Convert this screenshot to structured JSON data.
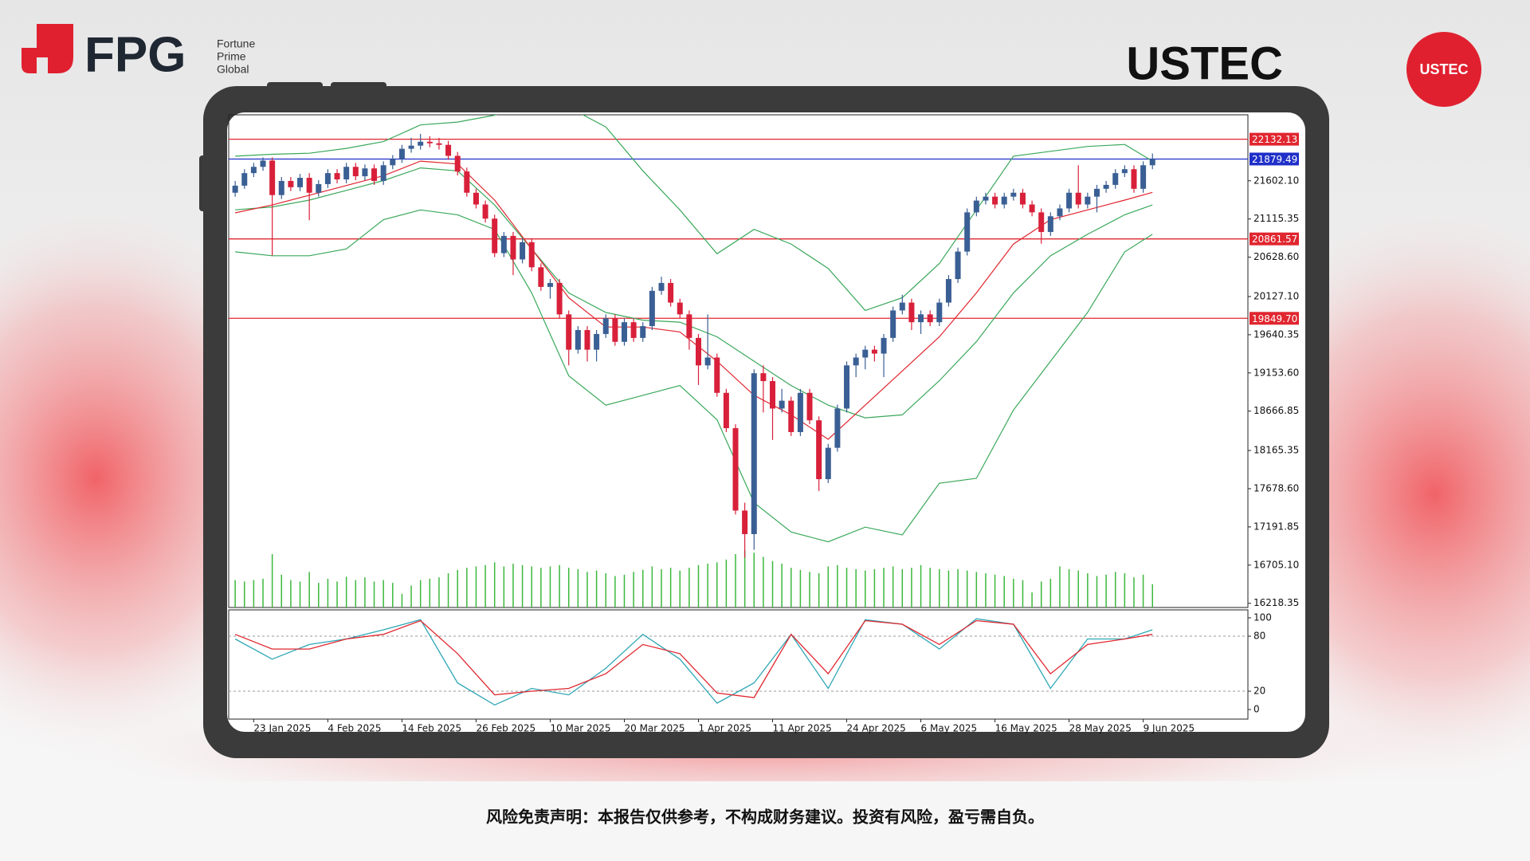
{
  "header": {
    "logo": {
      "name": "FPG",
      "tagline": [
        "Fortune",
        "Prime",
        "Global"
      ]
    },
    "title": "USTEC",
    "badge": "USTEC"
  },
  "chart_data": [
    {
      "type": "candlestick",
      "up_color": "#3a5f94",
      "down_color": "#d8203a",
      "xlim": [
        -0.7,
        109.3
      ],
      "ylim": [
        16165,
        22443
      ],
      "yticks": [
        16218.35,
        {
          "value": 16705.1,
          "label": "16705.10"
        },
        17191.85,
        {
          "value": 17678.6,
          "label": "17678.60"
        },
        18165.35,
        18666.85,
        {
          "value": 19153.6,
          "label": "19153.60"
        },
        19640.35,
        {
          "value": 20127.1,
          "label": "20127.10"
        },
        {
          "value": 20628.6,
          "label": "20628.60"
        },
        21115.35,
        {
          "value": 21602.1,
          "label": "21602.10"
        }
      ],
      "levels": [
        {
          "value": 22132.13,
          "label": "22132.13",
          "color": "#e0262f"
        },
        {
          "value": 21879.49,
          "label": "21879.49",
          "color": "#1f2fc8"
        },
        {
          "value": 20861.57,
          "label": "20861.57",
          "color": "#e0262f"
        },
        {
          "value": 19849.7,
          "label": "19849.70",
          "color": "#e0262f"
        }
      ],
      "ohlc": [
        [
          21450,
          21600,
          21400,
          21540
        ],
        [
          21540,
          21750,
          21500,
          21700
        ],
        [
          21700,
          21830,
          21650,
          21780
        ],
        [
          21780,
          21900,
          21730,
          21860
        ],
        [
          21860,
          21900,
          20650,
          21420
        ],
        [
          21420,
          21650,
          21370,
          21600
        ],
        [
          21600,
          21650,
          21470,
          21520
        ],
        [
          21520,
          21690,
          21470,
          21640
        ],
        [
          21640,
          21700,
          21100,
          21450
        ],
        [
          21450,
          21610,
          21400,
          21560
        ],
        [
          21560,
          21750,
          21510,
          21700
        ],
        [
          21700,
          21750,
          21570,
          21620
        ],
        [
          21620,
          21830,
          21570,
          21780
        ],
        [
          21780,
          21830,
          21610,
          21660
        ],
        [
          21660,
          21810,
          21610,
          21760
        ],
        [
          21760,
          21810,
          21550,
          21600
        ],
        [
          21600,
          21850,
          21550,
          21800
        ],
        [
          21800,
          21930,
          21750,
          21880
        ],
        [
          21880,
          22060,
          21830,
          22010
        ],
        [
          22010,
          22150,
          21960,
          22050
        ],
        [
          22050,
          22200,
          22000,
          22100
        ],
        [
          22100,
          22170,
          22030,
          22080
        ],
        [
          22080,
          22150,
          22000,
          22060
        ],
        [
          22060,
          22110,
          21870,
          21920
        ],
        [
          21920,
          21970,
          21670,
          21720
        ],
        [
          21720,
          21770,
          21400,
          21450
        ],
        [
          21450,
          21500,
          21250,
          21300
        ],
        [
          21300,
          21350,
          21070,
          21120
        ],
        [
          21120,
          21170,
          20630,
          20680
        ],
        [
          20680,
          20950,
          20630,
          20900
        ],
        [
          20900,
          20950,
          20400,
          20600
        ],
        [
          20600,
          20870,
          20550,
          20820
        ],
        [
          20820,
          20870,
          20450,
          20500
        ],
        [
          20500,
          20550,
          20200,
          20250
        ],
        [
          20250,
          20350,
          20100,
          20300
        ],
        [
          20300,
          20350,
          19850,
          19900
        ],
        [
          19900,
          19950,
          19250,
          19450
        ],
        [
          19450,
          19750,
          19400,
          19700
        ],
        [
          19700,
          19750,
          19300,
          19450
        ],
        [
          19450,
          19700,
          19300,
          19650
        ],
        [
          19650,
          19900,
          19600,
          19850
        ],
        [
          19850,
          19900,
          19500,
          19550
        ],
        [
          19550,
          19850,
          19500,
          19800
        ],
        [
          19800,
          19850,
          19550,
          19600
        ],
        [
          19600,
          19800,
          19550,
          19750
        ],
        [
          19750,
          20250,
          19700,
          20200
        ],
        [
          20200,
          20380,
          20150,
          20300
        ],
        [
          20300,
          20350,
          20000,
          20050
        ],
        [
          20050,
          20100,
          19850,
          19900
        ],
        [
          19900,
          19950,
          19450,
          19600
        ],
        [
          19600,
          19650,
          19000,
          19250
        ],
        [
          19250,
          19900,
          19200,
          19350
        ],
        [
          19350,
          19400,
          18850,
          18900
        ],
        [
          18900,
          18950,
          18400,
          18450
        ],
        [
          18450,
          18500,
          17350,
          17400
        ],
        [
          17400,
          17500,
          16800,
          17100
        ],
        [
          17100,
          19200,
          16900,
          19150
        ],
        [
          19150,
          19250,
          18650,
          19050
        ],
        [
          19050,
          19100,
          18300,
          18700
        ],
        [
          18700,
          18950,
          18650,
          18800
        ],
        [
          18800,
          18850,
          18350,
          18400
        ],
        [
          18400,
          18950,
          18350,
          18900
        ],
        [
          18900,
          18950,
          18500,
          18550
        ],
        [
          18550,
          18600,
          17650,
          17800
        ],
        [
          17800,
          18250,
          17750,
          18200
        ],
        [
          18200,
          18750,
          18150,
          18700
        ],
        [
          18700,
          19300,
          18650,
          19250
        ],
        [
          19250,
          19400,
          19100,
          19350
        ],
        [
          19350,
          19500,
          19200,
          19450
        ],
        [
          19450,
          19500,
          19300,
          19400
        ],
        [
          19400,
          19650,
          19100,
          19600
        ],
        [
          19600,
          20000,
          19550,
          19950
        ],
        [
          19950,
          20150,
          19900,
          20050
        ],
        [
          20050,
          20100,
          19700,
          19800
        ],
        [
          19800,
          19950,
          19650,
          19900
        ],
        [
          19900,
          19950,
          19750,
          19800
        ],
        [
          19800,
          20100,
          19750,
          20050
        ],
        [
          20050,
          20400,
          20000,
          20350
        ],
        [
          20350,
          20750,
          20300,
          20700
        ],
        [
          20700,
          21250,
          20650,
          21200
        ],
        [
          21200,
          21400,
          21150,
          21350
        ],
        [
          21350,
          21450,
          21300,
          21400
        ],
        [
          21400,
          21450,
          21250,
          21300
        ],
        [
          21300,
          21450,
          21250,
          21400
        ],
        [
          21400,
          21500,
          21350,
          21450
        ],
        [
          21450,
          21500,
          21250,
          21300
        ],
        [
          21300,
          21350,
          21150,
          21200
        ],
        [
          21200,
          21250,
          20800,
          20950
        ],
        [
          20950,
          21200,
          20900,
          21150
        ],
        [
          21150,
          21300,
          21100,
          21250
        ],
        [
          21250,
          21500,
          21200,
          21450
        ],
        [
          21450,
          21800,
          21250,
          21300
        ],
        [
          21300,
          21450,
          21250,
          21400
        ],
        [
          21400,
          21550,
          21200,
          21500
        ],
        [
          21500,
          21600,
          21450,
          21550
        ],
        [
          21550,
          21750,
          21500,
          21700
        ],
        [
          21700,
          21800,
          21650,
          21750
        ],
        [
          21750,
          21800,
          21450,
          21500
        ],
        [
          21500,
          21850,
          21450,
          21800
        ],
        [
          21800,
          21950,
          21750,
          21880
        ]
      ],
      "volume": {
        "color": "#3cb83c",
        "ylim": [
          0,
          720
        ],
        "values": [
          40,
          38,
          40,
          42,
          78,
          48,
          40,
          38,
          52,
          36,
          42,
          38,
          45,
          40,
          44,
          38,
          40,
          36,
          20,
          32,
          40,
          42,
          44,
          50,
          55,
          58,
          60,
          62,
          66,
          60,
          64,
          62,
          60,
          58,
          60,
          62,
          58,
          56,
          52,
          54,
          50,
          46,
          48,
          52,
          55,
          60,
          56,
          58,
          54,
          58,
          62,
          64,
          66,
          70,
          78,
          84,
          80,
          74,
          68,
          64,
          58,
          55,
          52,
          50,
          60,
          62,
          58,
          56,
          54,
          56,
          58,
          60,
          56,
          58,
          62,
          58,
          56,
          54,
          56,
          54,
          52,
          50,
          48,
          46,
          42,
          40,
          22,
          38,
          42,
          60,
          56,
          54,
          50,
          46,
          48,
          52,
          50,
          44,
          48,
          34
        ]
      },
      "lines": [
        {
          "color": "#3aa85a",
          "x": [
            0,
            4,
            8,
            12,
            16,
            20,
            24,
            28,
            32,
            36,
            40,
            44,
            48,
            52,
            56,
            60,
            64,
            68,
            72,
            76,
            80,
            84,
            88,
            92,
            96,
            99
          ],
          "values": [
            21916,
            21940,
            21953,
            22015,
            22102,
            22314,
            22351,
            22438,
            22600,
            22538,
            22289,
            21729,
            21231,
            20672,
            20983,
            20796,
            20485,
            19950,
            20112,
            20547,
            21231,
            21916,
            21978,
            22040,
            22065,
            21853
          ]
        },
        {
          "color": "#3aa85a",
          "x": [
            0,
            4,
            8,
            12,
            16,
            20,
            24,
            28,
            32,
            36,
            40,
            44,
            48,
            52,
            56,
            60,
            64,
            68,
            72,
            76,
            80,
            84,
            88,
            92,
            96,
            99
          ],
          "values": [
            21232,
            21269,
            21356,
            21480,
            21605,
            21766,
            21729,
            21294,
            20734,
            20174,
            19925,
            19826,
            19801,
            19614,
            19303,
            18993,
            18743,
            18582,
            18619,
            19055,
            19552,
            20174,
            20647,
            20920,
            21169,
            21294
          ]
        },
        {
          "color": "#3aa85a",
          "x": [
            0,
            4,
            8,
            12,
            16,
            20,
            24,
            28,
            32,
            36,
            40,
            44,
            48,
            52,
            56,
            60,
            64,
            68,
            72,
            76,
            80,
            84,
            88,
            92,
            96,
            99
          ],
          "values": [
            20697,
            20647,
            20647,
            20734,
            21107,
            21231,
            21169,
            20982,
            20174,
            19117,
            18743,
            18868,
            18993,
            18557,
            17500,
            17127,
            17002,
            17189,
            17089,
            17748,
            17811,
            18681,
            19303,
            19925,
            20697,
            20920
          ]
        },
        {
          "color": "#e0262f",
          "x": [
            0,
            4,
            8,
            12,
            16,
            20,
            24,
            28,
            32,
            36,
            40,
            44,
            48,
            52,
            56,
            60,
            64,
            68,
            72,
            76,
            80,
            84,
            88,
            92,
            96,
            99
          ],
          "values": [
            21194,
            21294,
            21418,
            21542,
            21667,
            21853,
            21816,
            21356,
            20734,
            20112,
            19739,
            19739,
            19676,
            19303,
            18868,
            18619,
            18308,
            18743,
            19179,
            19614,
            20174,
            20796,
            21107,
            21231,
            21356,
            21455
          ]
        }
      ]
    },
    {
      "type": "line",
      "xlim": [
        -0.7,
        109.3
      ],
      "ylim": [
        0,
        100
      ],
      "yticks": [
        0,
        20,
        80,
        100
      ],
      "levels": [
        20,
        80
      ],
      "xticks": [
        {
          "value": 2,
          "label": "23 Jan 2025"
        },
        {
          "value": 10,
          "label": "4 Feb 2025"
        },
        {
          "value": 18,
          "label": "14 Feb 2025"
        },
        {
          "value": 26,
          "label": "26 Feb 2025"
        },
        {
          "value": 34,
          "label": "10 Mar 2025"
        },
        {
          "value": 42,
          "label": "20 Mar 2025"
        },
        {
          "value": 50,
          "label": "1 Apr 2025"
        },
        {
          "value": 58,
          "label": "11 Apr 2025"
        },
        {
          "value": 66,
          "label": "24 Apr 2025"
        },
        {
          "value": 74,
          "label": "6 May 2025"
        },
        {
          "value": 82,
          "label": "16 May 2025"
        },
        {
          "value": 90,
          "label": "28 May 2025"
        },
        {
          "value": 98,
          "label": "9 Jun 2025"
        }
      ],
      "series": [
        {
          "color": "#2fa7b5",
          "x": [
            0,
            4,
            8,
            12,
            16,
            20,
            24,
            28,
            32,
            36,
            40,
            44,
            48,
            52,
            56,
            60,
            64,
            68,
            72,
            76,
            80,
            84,
            88,
            92,
            96,
            99
          ],
          "values": [
            77,
            55,
            71,
            77,
            87,
            98,
            29,
            5,
            23,
            16,
            45,
            82,
            55,
            7,
            29,
            82,
            23,
            98,
            93,
            66,
            99,
            93,
            23,
            77,
            77,
            87
          ]
        },
        {
          "color": "#e0262f",
          "x": [
            0,
            4,
            8,
            12,
            16,
            20,
            24,
            28,
            32,
            36,
            40,
            44,
            48,
            52,
            56,
            60,
            64,
            68,
            72,
            76,
            80,
            84,
            88,
            92,
            96,
            99
          ],
          "values": [
            82,
            66,
            66,
            77,
            82,
            97,
            61,
            16,
            20,
            23,
            39,
            71,
            61,
            18,
            13,
            82,
            39,
            97,
            93,
            71,
            97,
            93,
            39,
            71,
            77,
            82
          ]
        }
      ]
    }
  ],
  "footer": {
    "disclaimer": "风险免责声明：本报告仅供参考，不构成财务建议。投资有风险，盈亏需自负。"
  }
}
